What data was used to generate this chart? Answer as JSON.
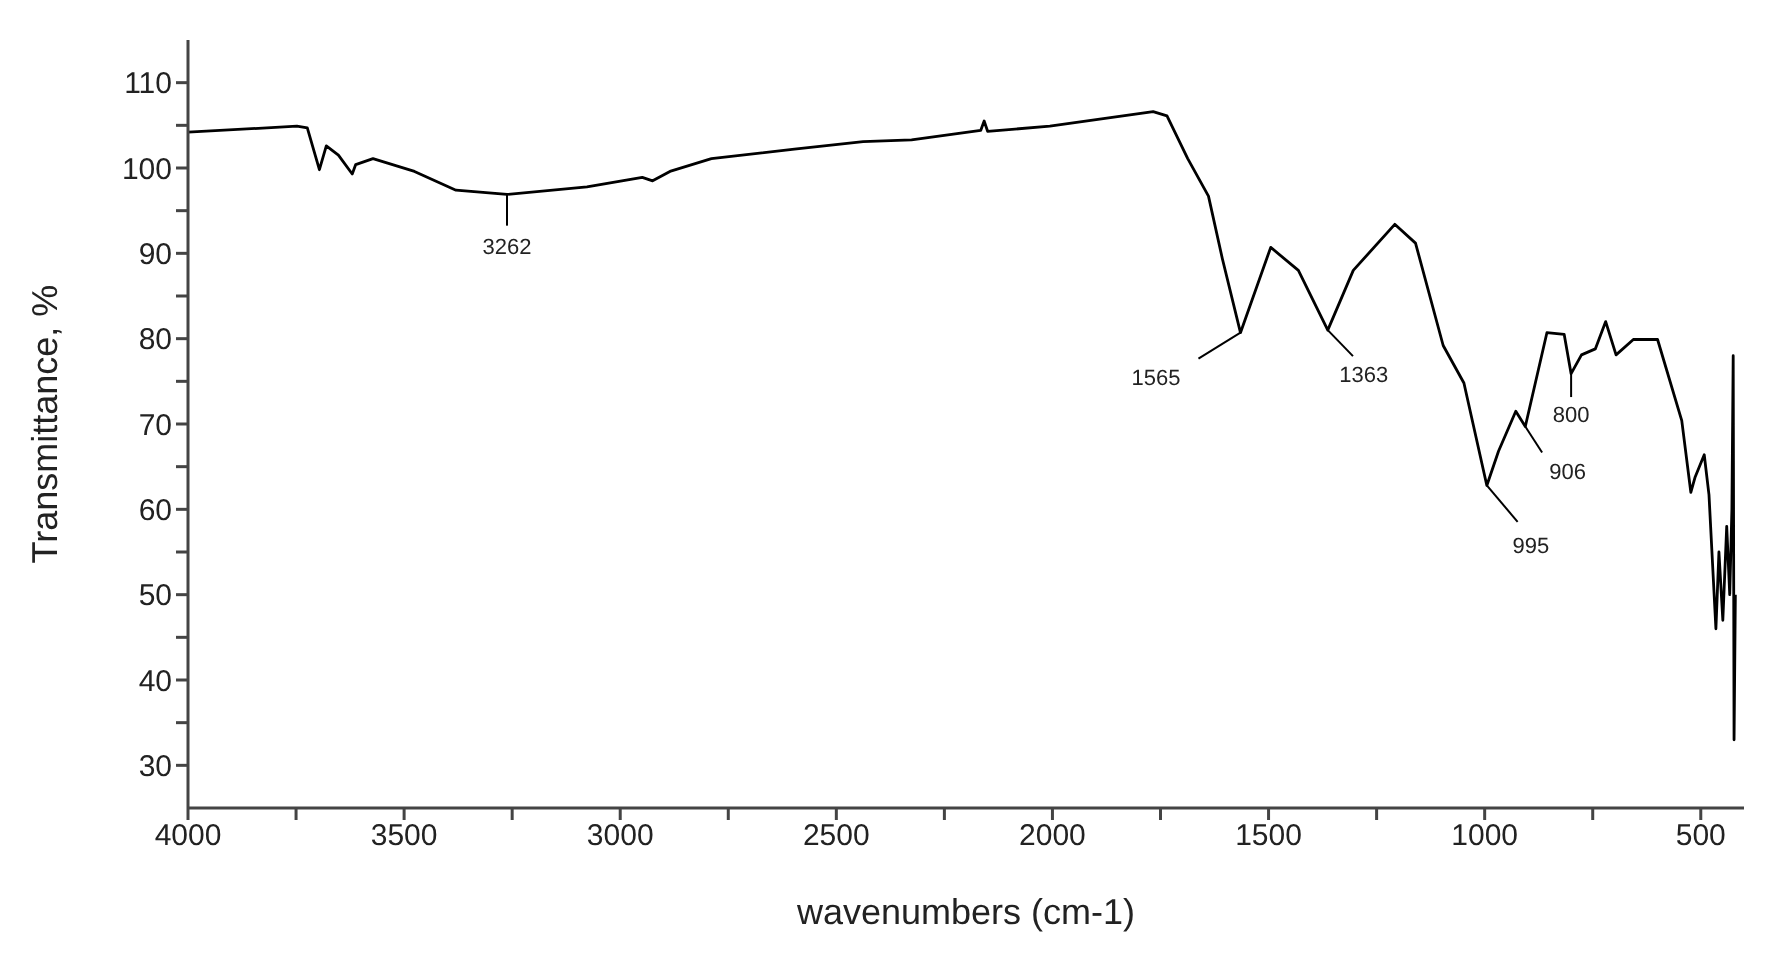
{
  "chart_data": {
    "type": "line",
    "xlabel": "wavenumbers (cm-1)",
    "ylabel": "Transmittance, %",
    "xlim": [
      4000,
      400
    ],
    "ylim": [
      25,
      115
    ],
    "xticks": [
      4000,
      {
        "value": 3750,
        "label": null
      },
      3500,
      {
        "value": 3250,
        "label": null
      },
      3000,
      {
        "value": 2750,
        "label": null
      },
      2500,
      {
        "value": 2250,
        "label": null
      },
      2000,
      {
        "value": 1750,
        "label": null
      },
      1500,
      {
        "value": 1250,
        "label": null
      },
      1000,
      {
        "value": 750,
        "label": null
      },
      500
    ],
    "yticks": [
      30,
      {
        "value": 35,
        "label": null
      },
      40,
      {
        "value": 45,
        "label": null
      },
      50,
      {
        "value": 55,
        "label": null
      },
      60,
      {
        "value": 65,
        "label": null
      },
      70,
      {
        "value": 75,
        "label": null
      },
      80,
      {
        "value": 85,
        "label": null
      },
      90,
      {
        "value": 95,
        "label": null
      },
      100,
      {
        "value": 105,
        "label": null
      },
      110
    ],
    "grid": false,
    "legend": false,
    "marker": "none",
    "line_style": "solid",
    "series": [
      {
        "color": "#000000",
        "x": [
          4000,
          3748,
          3724,
          3696,
          3680,
          3652,
          3620,
          3612,
          3572,
          3476,
          3380,
          3262,
          3077,
          2949,
          2925,
          2885,
          2789,
          2597,
          2438,
          2326,
          2166,
          2158,
          2150,
          2006,
          1767,
          1735,
          1687,
          1639,
          1607,
          1565,
          1495,
          1431,
          1363,
          1304,
          1208,
          1160,
          1096,
          1048,
          995,
          968,
          928,
          906,
          856,
          816,
          800,
          776,
          744,
          720,
          696,
          656,
          600,
          544,
          523,
          513,
          492,
          481,
          465,
          458,
          449,
          440,
          433,
          428,
          425,
          423,
          420
        ],
        "values": [
          104.2,
          104.9,
          104.7,
          99.8,
          102.6,
          101.5,
          99.3,
          100.4,
          101.1,
          99.6,
          97.4,
          96.9,
          97.8,
          98.9,
          98.5,
          99.6,
          101.1,
          102.2,
          103.1,
          103.3,
          104.4,
          105.5,
          104.3,
          104.9,
          106.6,
          106.1,
          101.1,
          96.7,
          89.4,
          80.7,
          90.7,
          88,
          81,
          88,
          93.4,
          91.2,
          79.2,
          74.8,
          62.8,
          66.8,
          71.5,
          69.7,
          80.7,
          80.5,
          75.9,
          78.1,
          78.8,
          82,
          78.1,
          79.9,
          79.9,
          70.4,
          62,
          63.8,
          66.4,
          61.7,
          46,
          55,
          47,
          58,
          50,
          60,
          78,
          33,
          50
        ]
      }
    ],
    "annotations": [
      {
        "text": "3262",
        "x": 3262,
        "y": 96.9
      },
      {
        "text": "1565",
        "x": 1565,
        "y": 80.7
      },
      {
        "text": "1363",
        "x": 1363,
        "y": 81
      },
      {
        "text": "995",
        "x": 995,
        "y": 62.8
      },
      {
        "text": "906",
        "x": 906,
        "y": 69.7
      },
      {
        "text": "800",
        "x": 800,
        "y": 75.9
      }
    ]
  }
}
